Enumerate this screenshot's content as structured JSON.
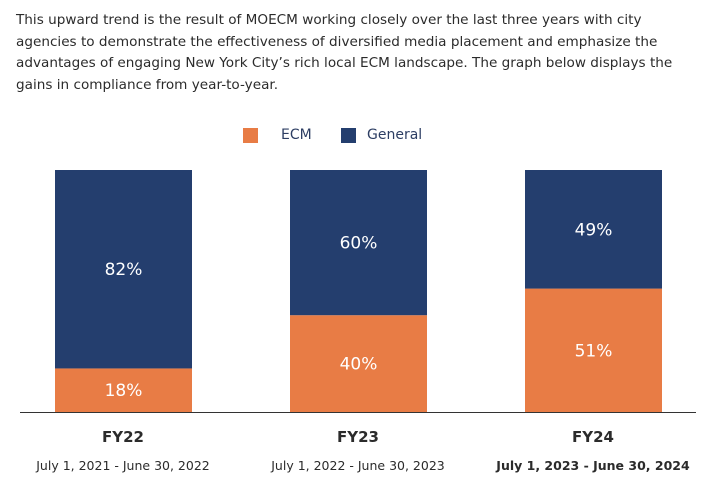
{
  "paragraph": "This upward trend is the result of MOECM working closely over the last three years with city agencies to demonstrate the effectiveness of diversified media placement and emphasize the advantages of engaging New York City’s rich local ECM landscape. The graph below displays the gains in compliance from year-to-year.",
  "colors": {
    "ecm": "#e87c45",
    "general": "#243e6e",
    "axis": "#333333"
  },
  "chart_data": {
    "type": "bar",
    "stacked": true,
    "categories": [
      "FY22",
      "FY23",
      "FY24"
    ],
    "date_ranges": [
      "July 1, 2021 - June 30, 2022",
      "July 1, 2022 - June 30, 2023",
      "July 1, 2023 - June 30, 2024"
    ],
    "series": [
      {
        "name": "ECM",
        "values": [
          18,
          40,
          51
        ],
        "labels": [
          "18%",
          "40%",
          "51%"
        ]
      },
      {
        "name": "General",
        "values": [
          82,
          60,
          49
        ],
        "labels": [
          "82%",
          "60%",
          "49%"
        ]
      }
    ],
    "ylim": [
      0,
      100
    ],
    "legend": "top-center",
    "title": "",
    "xlabel": "",
    "ylabel": ""
  }
}
